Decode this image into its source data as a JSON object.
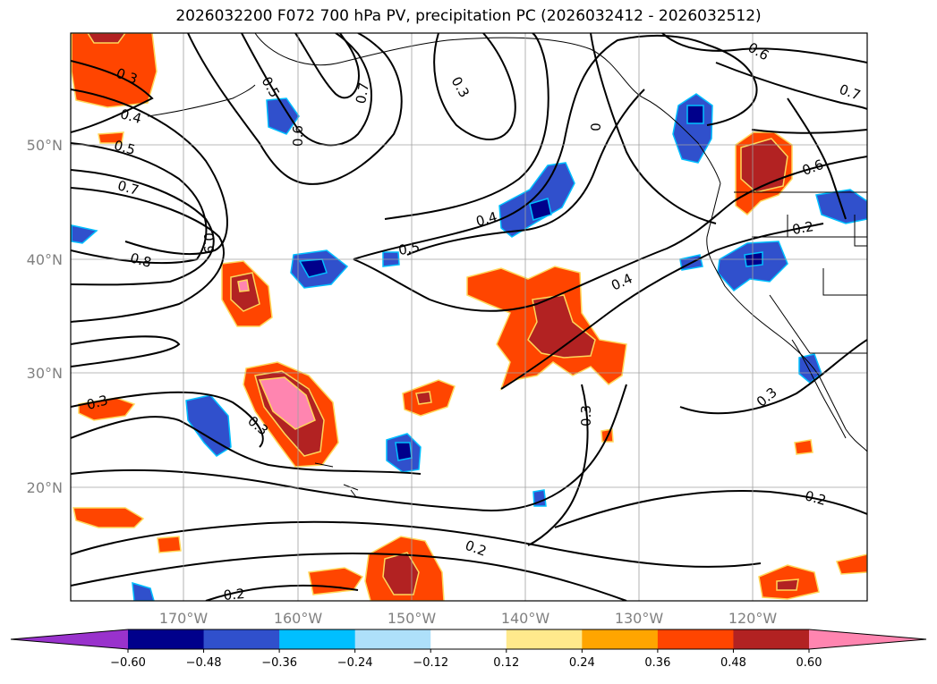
{
  "title": "2026032200 F072 700 hPa PV, precipitation PC (2026032412 - 2026032512)",
  "map": {
    "lat_labels": [
      "50°N",
      "40°N",
      "30°N",
      "20°N"
    ],
    "lon_labels": [
      "170°W",
      "160°W",
      "150°W",
      "140°W",
      "130°W",
      "120°W"
    ],
    "contour_labels": [
      {
        "text": "0.3"
      },
      {
        "text": "0.4"
      },
      {
        "text": "0.5"
      },
      {
        "text": "0.7"
      },
      {
        "text": "0.8"
      },
      {
        "text": "0.9"
      },
      {
        "text": "0.6"
      },
      {
        "text": "0.7"
      },
      {
        "text": "0.3"
      },
      {
        "text": "0.5"
      },
      {
        "text": "0.4"
      },
      {
        "text": "0.4"
      },
      {
        "text": "0.5"
      },
      {
        "text": "0.6"
      },
      {
        "text": "0.7"
      },
      {
        "text": "0.6"
      },
      {
        "text": "0.2"
      },
      {
        "text": "0.3"
      },
      {
        "text": "0.3"
      },
      {
        "text": "0.3"
      },
      {
        "text": "0.3"
      },
      {
        "text": "0.2"
      },
      {
        "text": "0.2"
      },
      {
        "text": "0.2"
      },
      {
        "text": "0"
      }
    ]
  },
  "colorbar": {
    "colors": [
      "#9932cc",
      "#00008b",
      "#3050cc",
      "#00bfff",
      "#aee0fa",
      "#ffffff",
      "#ffe98c",
      "#ffa500",
      "#ff4500",
      "#b22222",
      "#ff85b0"
    ],
    "ticks": [
      "−0.60",
      "−0.48",
      "−0.36",
      "−0.24",
      "−0.12",
      "0.12",
      "0.24",
      "0.36",
      "0.48",
      "0.60"
    ]
  }
}
